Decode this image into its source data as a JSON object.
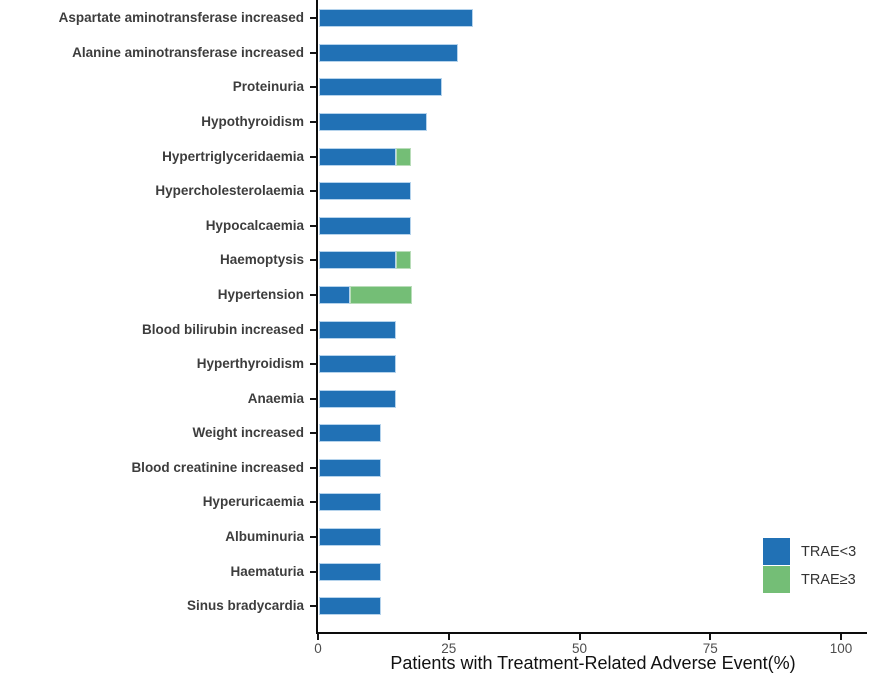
{
  "chart_data": {
    "type": "bar",
    "orientation": "horizontal",
    "stacked": true,
    "xlabel": "Patients with Treatment-Related Adverse Event(%)",
    "x_ticks": [
      0,
      25,
      50,
      75,
      100
    ],
    "xlim": [
      0,
      105
    ],
    "grid": false,
    "legend_position": "right-bottom",
    "categories": [
      "Aspartate aminotransferase increased",
      "Alanine aminotransferase increased",
      "Proteinuria",
      "Hypothyroidism",
      "Hypertriglyceridaemia",
      "Hypercholesterolaemia",
      "Hypocalcaemia",
      "Haemoptysis",
      "Hypertension",
      "Blood bilirubin increased",
      "Hyperthyroidism",
      "Anaemia",
      "Weight increased",
      "Blood creatinine increased",
      "Hyperuricaemia",
      "Albuminuria",
      "Haematuria",
      "Sinus bradycardia"
    ],
    "series": [
      {
        "name": "TRAE<3",
        "color": "#2171b5",
        "values": [
          29.4,
          26.5,
          23.5,
          20.6,
          14.7,
          17.6,
          17.6,
          14.7,
          5.9,
          14.7,
          14.7,
          14.7,
          11.8,
          11.8,
          11.8,
          11.8,
          11.8,
          11.8
        ]
      },
      {
        "name": "TRAE≥3",
        "color": "#74be76",
        "values": [
          0,
          0,
          0,
          0,
          2.9,
          0,
          0,
          2.9,
          11.8,
          0,
          0,
          0,
          0,
          0,
          0,
          0,
          0,
          0
        ]
      }
    ],
    "axis_color": "#0c0c0c",
    "label_color": "#3d3d3d",
    "tick_label_color": "#4d4d4d"
  }
}
